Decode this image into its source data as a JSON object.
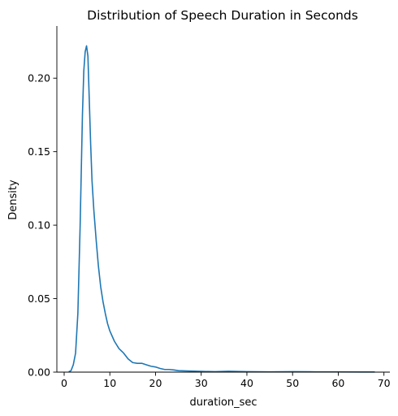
{
  "chart_data": {
    "type": "line",
    "title": "Distribution of Speech Duration in Seconds",
    "xlabel": "duration_sec",
    "ylabel": "Density",
    "xlim": [
      -1.6,
      71.3
    ],
    "ylim": [
      0,
      0.2355
    ],
    "xticks": [
      0,
      10,
      20,
      30,
      40,
      50,
      60,
      70
    ],
    "yticks": [
      0.0,
      0.05,
      0.1,
      0.15,
      0.2
    ],
    "ytick_labels": [
      "0.00",
      "0.05",
      "0.10",
      "0.15",
      "0.20"
    ],
    "grid": false,
    "legend": "none",
    "line_color": "#1f77b4",
    "series": [
      {
        "x": [
          1.0,
          1.5,
          2.0,
          2.5,
          3.0,
          3.5,
          4.0,
          4.3,
          4.6,
          4.9,
          5.2,
          5.5,
          5.8,
          6.1,
          6.5,
          7.0,
          7.5,
          8.0,
          8.5,
          9.0,
          9.5,
          10.0,
          11.0,
          12.0,
          13.0,
          14.0,
          15.0,
          16.0,
          17.0,
          18.0,
          19.0,
          20.0,
          21.0,
          22.0,
          23.0,
          24.0,
          25.0,
          27.0,
          30.0,
          33.0,
          36.0,
          40.0,
          45.0,
          50.0,
          55.0,
          60.0,
          65.0,
          68.0
        ],
        "y": [
          0.0002,
          0.001,
          0.005,
          0.013,
          0.04,
          0.1,
          0.175,
          0.205,
          0.218,
          0.222,
          0.215,
          0.185,
          0.155,
          0.13,
          0.11,
          0.09,
          0.072,
          0.058,
          0.048,
          0.04,
          0.033,
          0.028,
          0.021,
          0.016,
          0.013,
          0.009,
          0.0065,
          0.006,
          0.006,
          0.005,
          0.004,
          0.0035,
          0.0025,
          0.0018,
          0.0018,
          0.0015,
          0.001,
          0.0008,
          0.0005,
          0.0003,
          0.0006,
          0.0003,
          0.0002,
          0.0003,
          0.0002,
          0.0002,
          0.0001,
          0.0001
        ]
      }
    ]
  }
}
